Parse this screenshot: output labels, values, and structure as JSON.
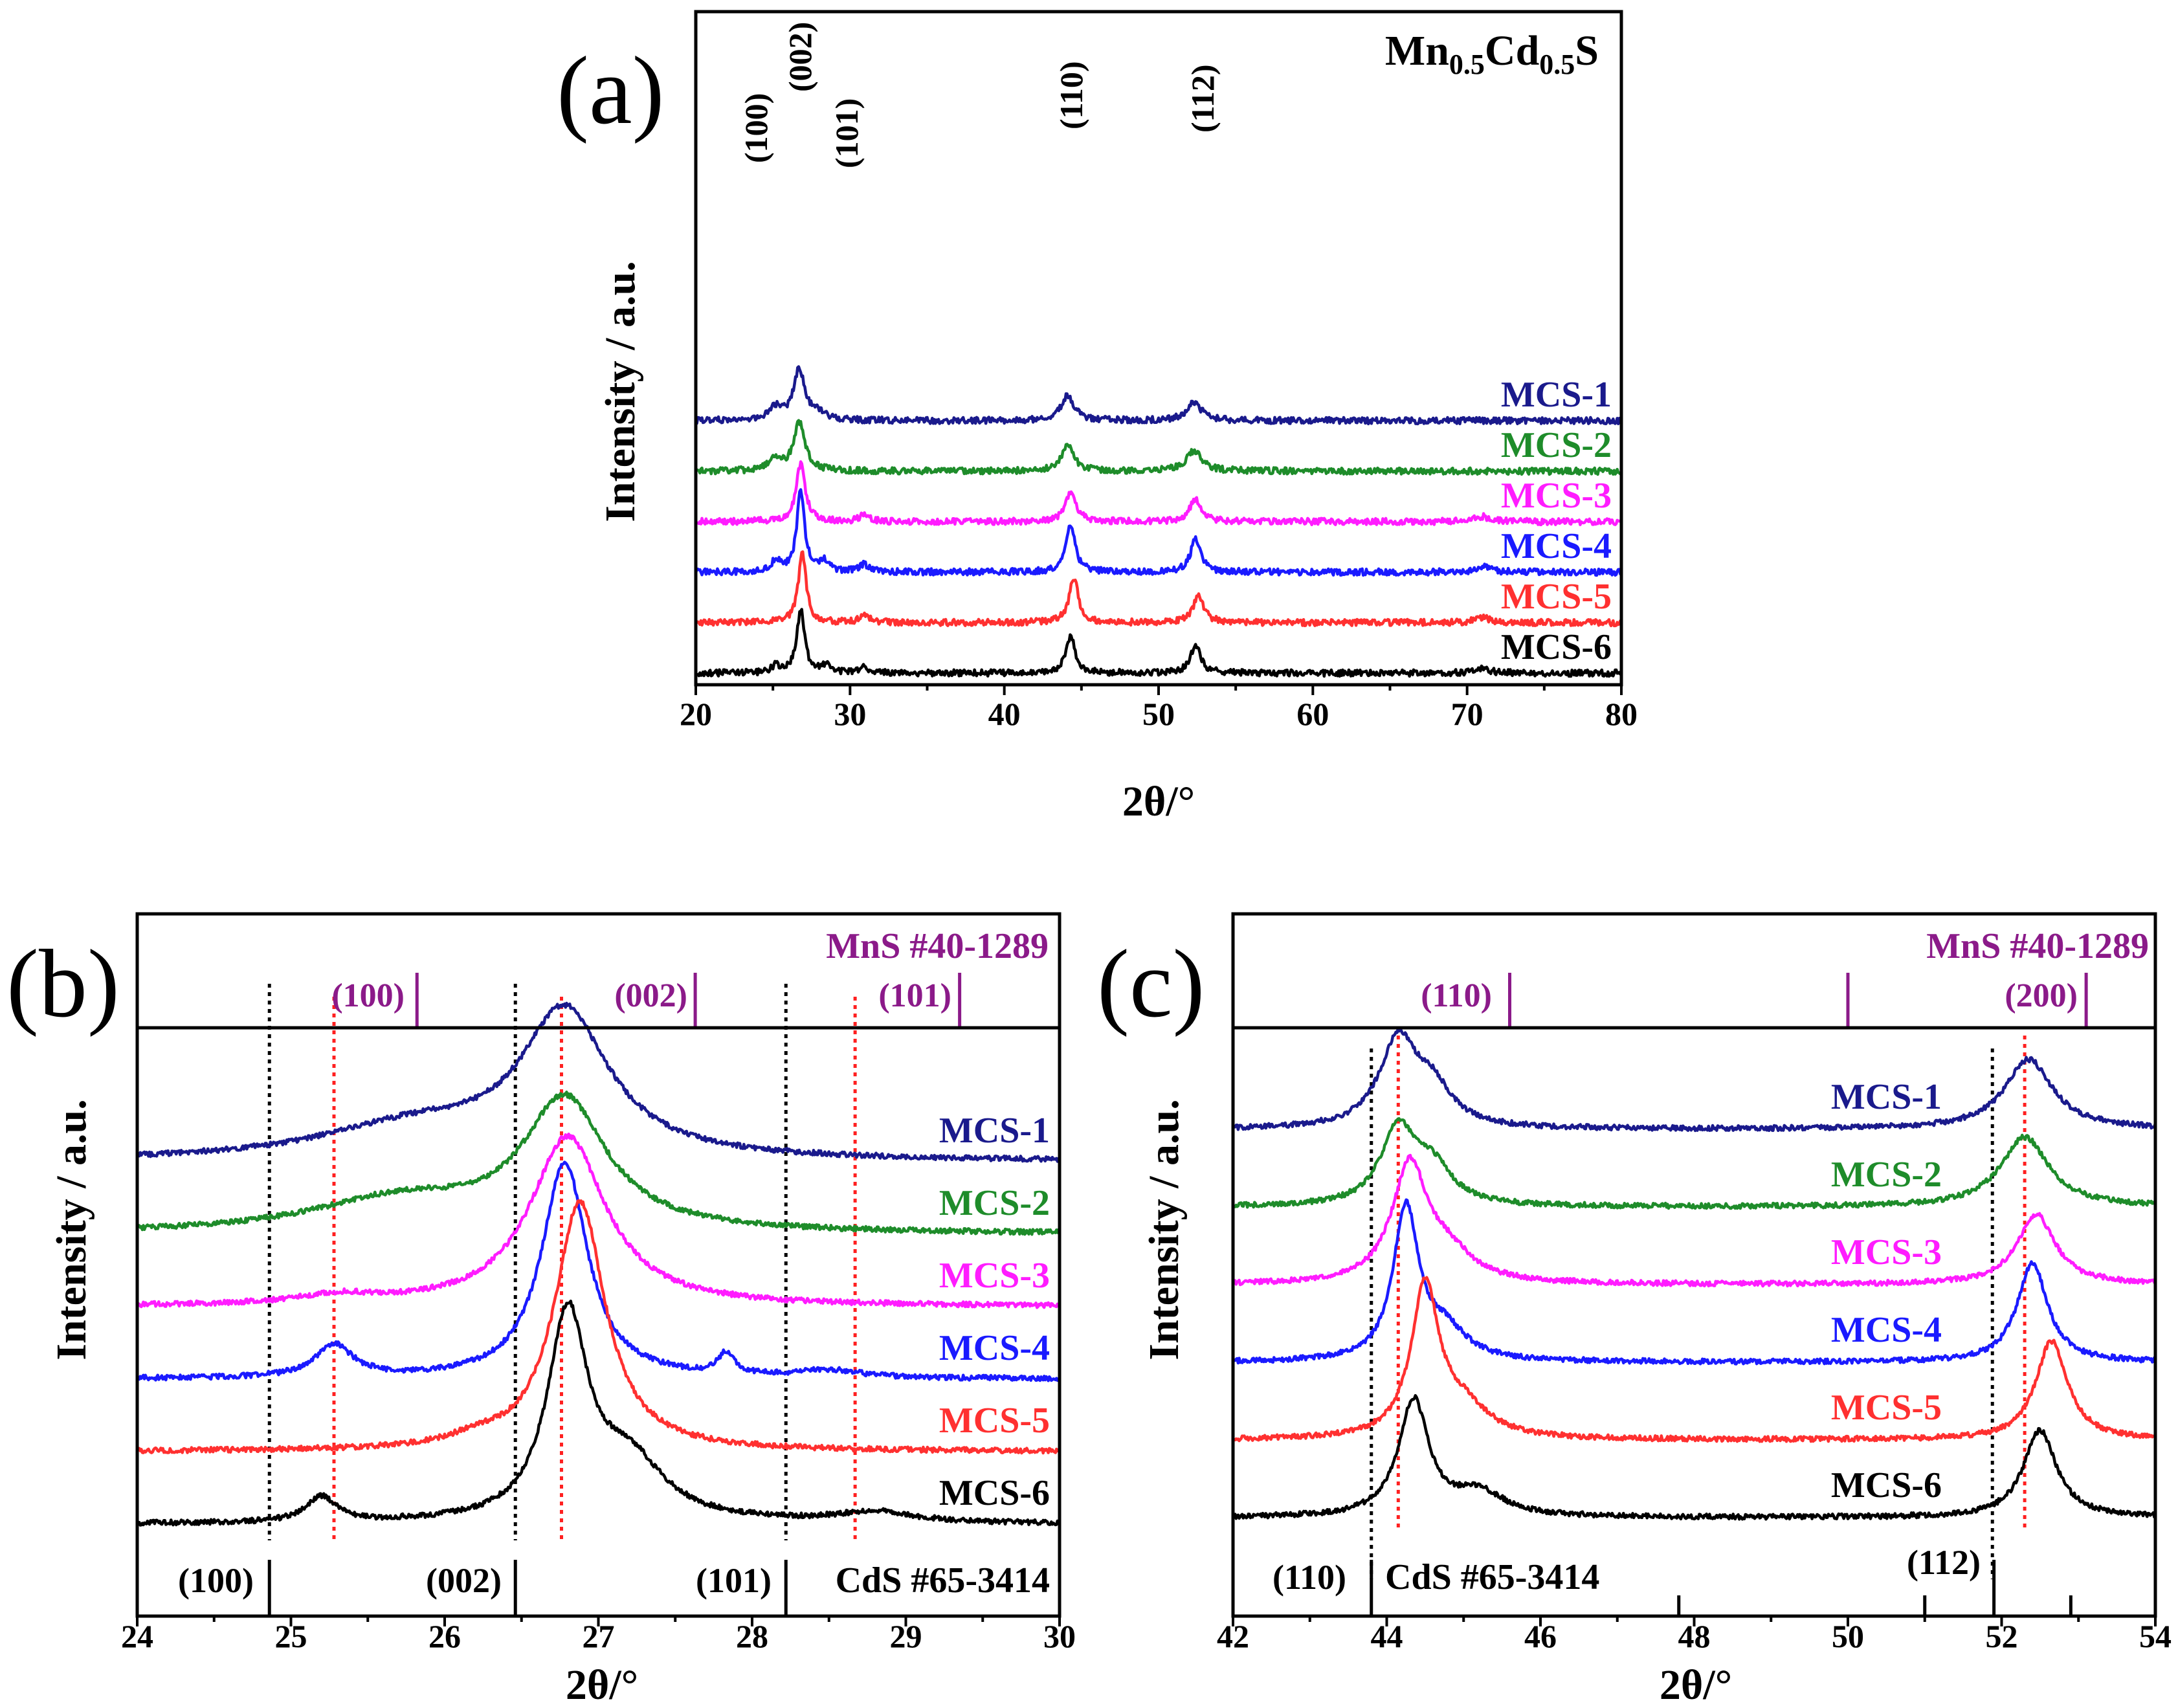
{
  "colors": {
    "MCS-1": "#1a1a8c",
    "MCS-2": "#1e8c2a",
    "MCS-3": "#ff1cff",
    "MCS-4": "#1a1aff",
    "MCS-5": "#ff3030",
    "MCS-6": "#000000",
    "mns_marker": "#8b1a89",
    "guide_red": "#ff2020"
  },
  "panels": {
    "a": {
      "letter": "(a)",
      "compound_base": "Mn",
      "compound_sub1": "0.5",
      "compound_mid": "Cd",
      "compound_sub2": "0.5",
      "compound_end": "S",
      "peak_labels": [
        "(100)",
        "(002)",
        "(101)",
        "(110)",
        "(112)"
      ]
    },
    "b": {
      "letter": "(b)",
      "mns_ref": "MnS #40-1289",
      "cds_ref": "CdS #65-3414",
      "mns_hkl": [
        "(100)",
        "(002)",
        "(101)"
      ],
      "cds_hkl": [
        "(100)",
        "(002)",
        "(101)"
      ]
    },
    "c": {
      "letter": "(c)",
      "mns_ref": "MnS #40-1289",
      "cds_ref": "CdS #65-3414",
      "mns_hkl": [
        "(110)",
        "(200)"
      ],
      "cds_hkl": [
        "(110)",
        "(112)"
      ]
    }
  },
  "chart_data": [
    {
      "type": "line",
      "panel": "a",
      "title": "Mn0.5Cd0.5S",
      "xlabel": "2θ/°",
      "ylabel": "Intensity / a.u.",
      "xlim": [
        20,
        80
      ],
      "xticks": [
        "20",
        "30",
        "40",
        "50",
        "60",
        "70",
        "80"
      ],
      "series": [
        {
          "name": "MCS-1",
          "offset": 5,
          "peaks": [
            {
              "x": 25.1,
              "h": 0.25,
              "w": 0.5
            },
            {
              "x": 26.7,
              "h": 1.0,
              "w": 0.45
            },
            {
              "x": 28.0,
              "h": 0.12,
              "w": 0.6
            },
            {
              "x": 44.1,
              "h": 0.5,
              "w": 0.5
            },
            {
              "x": 52.3,
              "h": 0.35,
              "w": 0.6
            }
          ]
        },
        {
          "name": "MCS-2",
          "offset": 4,
          "peaks": [
            {
              "x": 25.1,
              "h": 0.22,
              "w": 0.5
            },
            {
              "x": 26.7,
              "h": 0.95,
              "w": 0.45
            },
            {
              "x": 44.1,
              "h": 0.5,
              "w": 0.5
            },
            {
              "x": 52.3,
              "h": 0.4,
              "w": 0.6
            }
          ]
        },
        {
          "name": "MCS-3",
          "offset": 3,
          "peaks": [
            {
              "x": 26.8,
              "h": 1.15,
              "w": 0.35
            },
            {
              "x": 30.9,
              "h": 0.12,
              "w": 0.4
            },
            {
              "x": 44.3,
              "h": 0.6,
              "w": 0.4
            },
            {
              "x": 52.4,
              "h": 0.45,
              "w": 0.45
            },
            {
              "x": 71.0,
              "h": 0.1,
              "w": 0.6
            }
          ]
        },
        {
          "name": "MCS-4",
          "offset": 2,
          "peaks": [
            {
              "x": 25.2,
              "h": 0.25,
              "w": 0.3
            },
            {
              "x": 26.8,
              "h": 1.6,
              "w": 0.3
            },
            {
              "x": 28.3,
              "h": 0.2,
              "w": 0.4
            },
            {
              "x": 30.9,
              "h": 0.15,
              "w": 0.35
            },
            {
              "x": 44.3,
              "h": 0.95,
              "w": 0.35
            },
            {
              "x": 52.4,
              "h": 0.65,
              "w": 0.4
            },
            {
              "x": 71.0,
              "h": 0.1,
              "w": 0.6
            }
          ]
        },
        {
          "name": "MCS-5",
          "offset": 1,
          "peaks": [
            {
              "x": 26.9,
              "h": 1.4,
              "w": 0.3
            },
            {
              "x": 30.9,
              "h": 0.15,
              "w": 0.35
            },
            {
              "x": 44.5,
              "h": 0.9,
              "w": 0.35
            },
            {
              "x": 52.6,
              "h": 0.55,
              "w": 0.4
            },
            {
              "x": 71.0,
              "h": 0.1,
              "w": 0.6
            }
          ]
        },
        {
          "name": "MCS-6",
          "offset": 0,
          "peaks": [
            {
              "x": 25.2,
              "h": 0.15,
              "w": 0.3
            },
            {
              "x": 26.8,
              "h": 1.25,
              "w": 0.3
            },
            {
              "x": 28.4,
              "h": 0.15,
              "w": 0.4
            },
            {
              "x": 30.9,
              "h": 0.1,
              "w": 0.35
            },
            {
              "x": 44.3,
              "h": 0.75,
              "w": 0.35
            },
            {
              "x": 52.4,
              "h": 0.55,
              "w": 0.4
            },
            {
              "x": 71.0,
              "h": 0.08,
              "w": 0.6
            }
          ]
        }
      ]
    },
    {
      "type": "line",
      "panel": "b",
      "xlabel": "2θ/°",
      "ylabel": "Intensity / a.u.",
      "xlim": [
        24,
        30
      ],
      "xticks": [
        "24",
        "25",
        "26",
        "27",
        "28",
        "29",
        "30"
      ],
      "mns_sticks": [
        {
          "x": 25.82,
          "label": "(100)"
        },
        {
          "x": 27.63,
          "label": "(002)"
        },
        {
          "x": 29.35,
          "label": "(101)"
        }
      ],
      "cds_sticks": [
        {
          "x": 24.86,
          "label": "(100)"
        },
        {
          "x": 26.46,
          "label": "(002)"
        },
        {
          "x": 28.22,
          "label": "(101)"
        }
      ],
      "guides_black": [
        24.86,
        26.46,
        28.22
      ],
      "guides_red": [
        25.28,
        26.76,
        28.67
      ],
      "series": [
        {
          "name": "MCS-1",
          "offset": 5,
          "base_start": 0.0,
          "base_end": 0.0,
          "peaks": [
            {
              "x": 25.8,
              "h": 0.45,
              "w": 0.75
            },
            {
              "x": 26.78,
              "h": 2.0,
              "w": 0.35
            }
          ]
        },
        {
          "name": "MCS-2",
          "offset": 4,
          "base_start": 0.0,
          "base_end": 0.0,
          "peaks": [
            {
              "x": 25.7,
              "h": 0.45,
              "w": 0.7
            },
            {
              "x": 26.78,
              "h": 1.8,
              "w": 0.33
            }
          ]
        },
        {
          "name": "MCS-3",
          "offset": 3,
          "base_start": 0.0,
          "base_end": 0.0,
          "peaks": [
            {
              "x": 25.3,
              "h": 0.12,
              "w": 0.3
            },
            {
              "x": 26.8,
              "h": 2.35,
              "w": 0.3
            }
          ]
        },
        {
          "name": "MCS-4",
          "offset": 2,
          "base_start": 0.0,
          "base_end": 0.0,
          "peaks": [
            {
              "x": 25.28,
              "h": 0.45,
              "w": 0.15
            },
            {
              "x": 26.78,
              "h": 3.0,
              "w": 0.18
            },
            {
              "x": 27.83,
              "h": 0.3,
              "w": 0.06
            },
            {
              "x": 28.5,
              "h": 0.1,
              "w": 0.25
            }
          ]
        },
        {
          "name": "MCS-5",
          "offset": 1,
          "base_start": 0.0,
          "base_end": 0.0,
          "peaks": [
            {
              "x": 26.88,
              "h": 3.45,
              "w": 0.2
            },
            {
              "x": 26.2,
              "h": 0.1,
              "w": 0.2
            }
          ]
        },
        {
          "name": "MCS-6",
          "offset": 0,
          "base_start": 0.0,
          "base_end": 0.0,
          "peaks": [
            {
              "x": 25.2,
              "h": 0.35,
              "w": 0.12
            },
            {
              "x": 26.8,
              "h": 2.8,
              "w": 0.16
            },
            {
              "x": 27.2,
              "h": 0.8,
              "w": 0.28
            },
            {
              "x": 28.8,
              "h": 0.15,
              "w": 0.3
            }
          ]
        }
      ]
    },
    {
      "type": "line",
      "panel": "c",
      "xlabel": "2θ/°",
      "ylabel": "Intensity / a.u.",
      "xlim": [
        42,
        54
      ],
      "xticks": [
        "42",
        "44",
        "46",
        "48",
        "50",
        "52",
        "54"
      ],
      "mns_sticks": [
        {
          "x": 45.6,
          "label": "(110)"
        },
        {
          "x": 50.0,
          "label": ""
        },
        {
          "x": 53.1,
          "label": "(200)"
        }
      ],
      "cds_sticks": [
        {
          "x": 43.8,
          "label": "(110)"
        },
        {
          "x": 47.8,
          "label": ""
        },
        {
          "x": 51.0,
          "label": ""
        },
        {
          "x": 51.9,
          "label": "(112)"
        },
        {
          "x": 52.9,
          "label": ""
        }
      ],
      "guides_black": [
        43.8,
        51.88
      ],
      "guides_red": [
        44.15,
        52.3
      ],
      "series": [
        {
          "name": "MCS-1",
          "offset": 5,
          "peaks": [
            {
              "x": 44.15,
              "h": 1.5,
              "w": 0.3
            },
            {
              "x": 44.6,
              "h": 0.6,
              "w": 0.3
            },
            {
              "x": 52.35,
              "h": 1.2,
              "w": 0.38
            }
          ]
        },
        {
          "name": "MCS-2",
          "offset": 4,
          "peaks": [
            {
              "x": 44.15,
              "h": 1.3,
              "w": 0.28
            },
            {
              "x": 44.6,
              "h": 0.6,
              "w": 0.3
            },
            {
              "x": 52.3,
              "h": 1.2,
              "w": 0.38
            }
          ]
        },
        {
          "name": "MCS-3",
          "offset": 3,
          "peaks": [
            {
              "x": 44.3,
              "h": 2.0,
              "w": 0.28
            },
            {
              "x": 44.8,
              "h": 0.45,
              "w": 0.4
            },
            {
              "x": 52.45,
              "h": 1.2,
              "w": 0.3
            }
          ]
        },
        {
          "name": "MCS-4",
          "offset": 2,
          "peaks": [
            {
              "x": 44.25,
              "h": 2.6,
              "w": 0.2
            },
            {
              "x": 44.75,
              "h": 0.5,
              "w": 0.35
            },
            {
              "x": 52.4,
              "h": 1.7,
              "w": 0.24
            }
          ]
        },
        {
          "name": "MCS-5",
          "offset": 1,
          "peaks": [
            {
              "x": 44.5,
              "h": 2.6,
              "w": 0.22
            },
            {
              "x": 45.0,
              "h": 0.5,
              "w": 0.4
            },
            {
              "x": 52.65,
              "h": 1.7,
              "w": 0.25
            }
          ]
        },
        {
          "name": "MCS-6",
          "offset": 0,
          "peaks": [
            {
              "x": 44.35,
              "h": 2.0,
              "w": 0.24
            },
            {
              "x": 45.2,
              "h": 0.4,
              "w": 0.4
            },
            {
              "x": 52.5,
              "h": 1.5,
              "w": 0.26
            }
          ]
        }
      ]
    }
  ]
}
